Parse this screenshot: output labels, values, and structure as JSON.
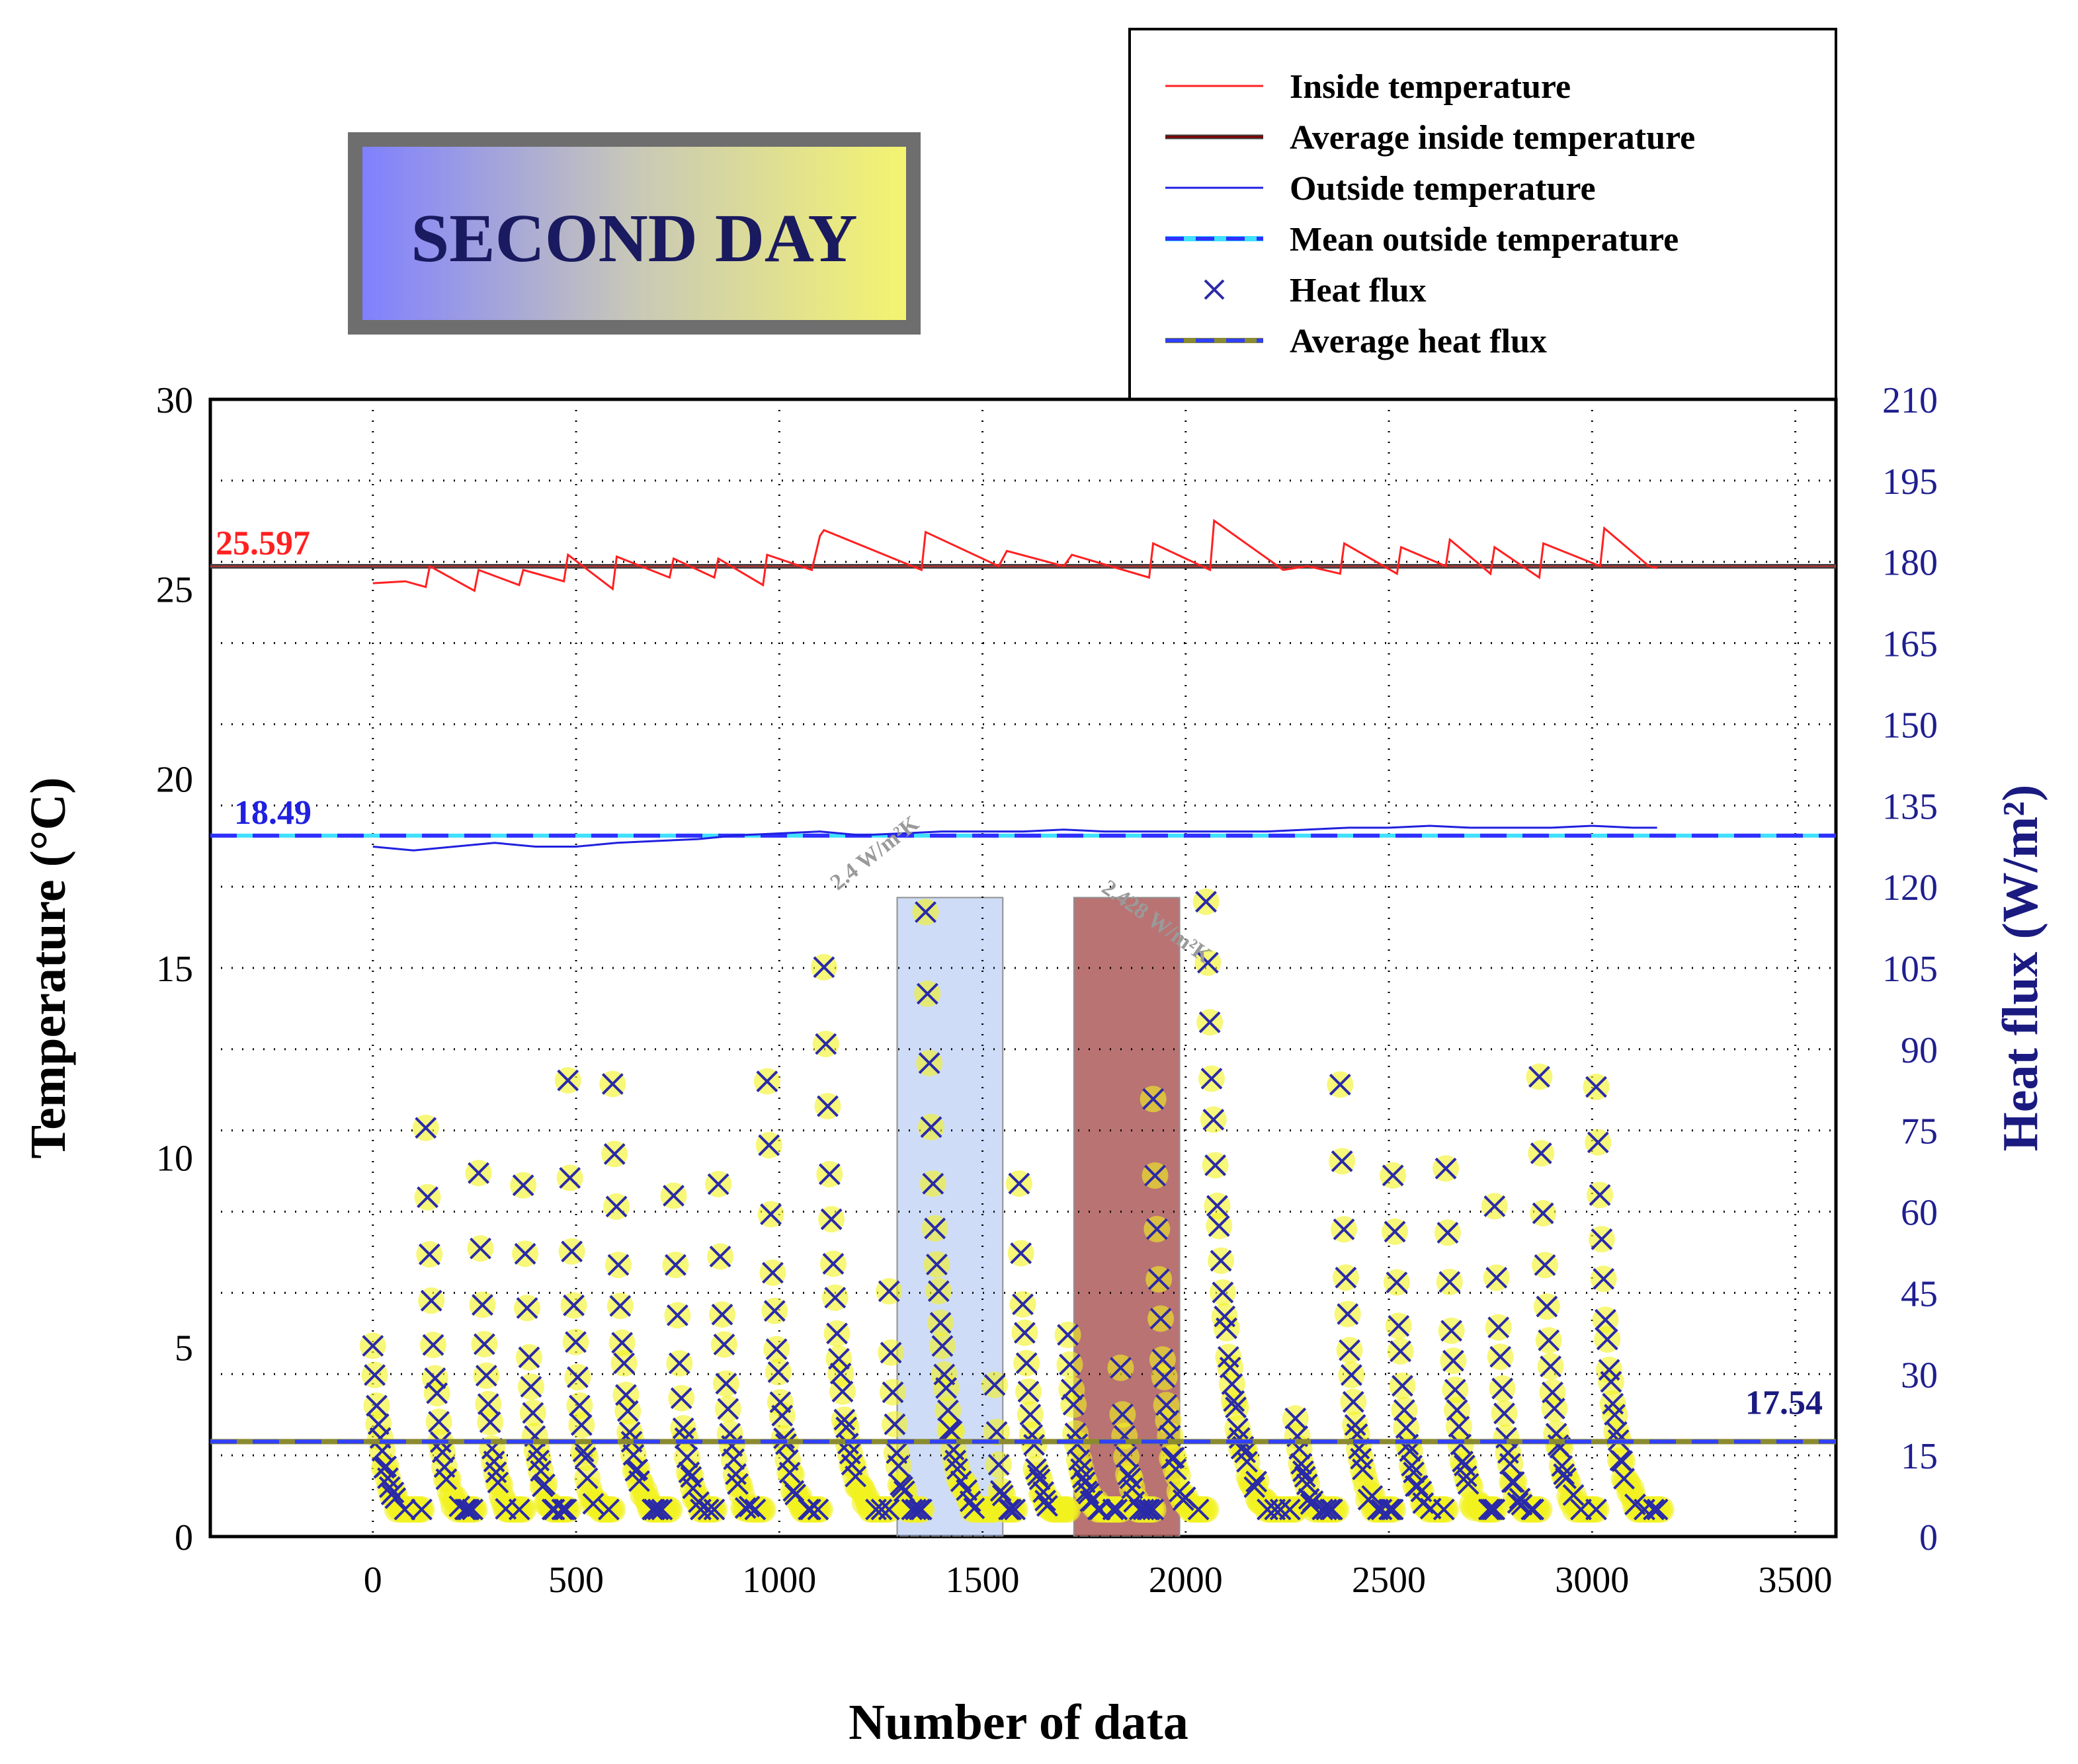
{
  "title_box": {
    "text": "SECOND DAY"
  },
  "chart_data": {
    "type": "line+scatter",
    "xlabel": "Number of data",
    "ylabel_left": "Temperature (°C)",
    "ylabel_right": "Heat flux (W/m²)",
    "xlim": [
      -400,
      3600
    ],
    "ylim_left": [
      0,
      30
    ],
    "ylim_right": [
      0,
      210
    ],
    "x_ticks": [
      "0",
      "500",
      "1000",
      "1500",
      "2000",
      "2500",
      "3000",
      "3500"
    ],
    "y_ticks_left": [
      "0",
      "5",
      "10",
      "15",
      "20",
      "25",
      "30"
    ],
    "y_ticks_right": [
      "0",
      "15",
      "30",
      "45",
      "60",
      "75",
      "90",
      "105",
      "120",
      "135",
      "150",
      "165",
      "180",
      "195",
      "210"
    ],
    "grid": true,
    "legend": {
      "position": "top-right",
      "entries": [
        {
          "label": "Inside temperature",
          "style": "line",
          "color": "#ff2020"
        },
        {
          "label": "Average inside temperature",
          "style": "line",
          "color": "#800000",
          "accent": "#404040"
        },
        {
          "label": "Outside temperature",
          "style": "line",
          "color": "#2020e0"
        },
        {
          "label": "Mean outside temperature",
          "style": "dashed",
          "color": "#3030ff",
          "accent": "#40e0ff"
        },
        {
          "label": "Heat flux",
          "style": "marker-x",
          "color": "#2a2aa8"
        },
        {
          "label": "Average heat flux",
          "style": "dashed",
          "color": "#3040ff",
          "accent": "#8a8a30"
        }
      ]
    },
    "inside_temperature": {
      "x": [
        0,
        80,
        130,
        140,
        250,
        260,
        360,
        370,
        470,
        480,
        590,
        600,
        730,
        740,
        840,
        850,
        960,
        970,
        1080,
        1100,
        1110,
        1350,
        1360,
        1540,
        1560,
        1700,
        1720,
        1910,
        1920,
        2040,
        2060,
        2070,
        2240,
        2300,
        2380,
        2390,
        2520,
        2530,
        2640,
        2650,
        2750,
        2760,
        2870,
        2880,
        3020,
        3030,
        3140,
        3160
      ],
      "y": [
        25.15,
        25.2,
        25.05,
        25.6,
        24.95,
        25.5,
        25.1,
        25.5,
        25.2,
        25.9,
        25.0,
        25.85,
        25.3,
        25.8,
        25.3,
        25.8,
        25.1,
        25.9,
        25.5,
        26.4,
        26.55,
        25.5,
        26.5,
        25.6,
        26.0,
        25.6,
        25.9,
        25.3,
        26.2,
        25.6,
        25.5,
        26.8,
        25.5,
        25.6,
        25.4,
        26.2,
        25.4,
        26.1,
        25.6,
        26.3,
        25.4,
        26.1,
        25.3,
        26.2,
        25.6,
        26.6,
        25.6,
        25.55
      ]
    },
    "average_inside_temperature": 25.597,
    "outside_temperature": {
      "x": [
        0,
        100,
        200,
        300,
        400,
        500,
        600,
        700,
        800,
        900,
        1000,
        1100,
        1200,
        1300,
        1400,
        1500,
        1600,
        1700,
        1800,
        1900,
        2000,
        2100,
        2200,
        2300,
        2400,
        2500,
        2600,
        2700,
        2800,
        2900,
        3000,
        3100,
        3160
      ],
      "y": [
        18.2,
        18.1,
        18.2,
        18.3,
        18.2,
        18.2,
        18.3,
        18.35,
        18.4,
        18.5,
        18.55,
        18.6,
        18.5,
        18.55,
        18.6,
        18.6,
        18.6,
        18.65,
        18.6,
        18.6,
        18.6,
        18.6,
        18.6,
        18.65,
        18.7,
        18.7,
        18.75,
        18.7,
        18.7,
        18.7,
        18.75,
        18.7,
        18.7
      ]
    },
    "mean_outside_temperature": 18.49,
    "average_heat_flux": 17.54,
    "heat_flux_peaks": [
      {
        "start": 0,
        "end": 120,
        "peak": 28
      },
      {
        "start": 130,
        "end": 250,
        "peak": 69
      },
      {
        "start": 260,
        "end": 370,
        "peak": 60
      },
      {
        "start": 370,
        "end": 480,
        "peak": 57
      },
      {
        "start": 480,
        "end": 590,
        "peak": 76
      },
      {
        "start": 590,
        "end": 730,
        "peak": 77
      },
      {
        "start": 740,
        "end": 840,
        "peak": 56
      },
      {
        "start": 850,
        "end": 960,
        "peak": 57
      },
      {
        "start": 970,
        "end": 1100,
        "peak": 78
      },
      {
        "start": 1110,
        "end": 1270,
        "peak": 98
      },
      {
        "start": 1270,
        "end": 1350,
        "peak": 37
      },
      {
        "start": 1360,
        "end": 1530,
        "peak": 108
      },
      {
        "start": 1530,
        "end": 1580,
        "peak": 22
      },
      {
        "start": 1590,
        "end": 1710,
        "peak": 57
      },
      {
        "start": 1710,
        "end": 1840,
        "peak": 30
      },
      {
        "start": 1840,
        "end": 1920,
        "peak": 23
      },
      {
        "start": 1920,
        "end": 2050,
        "peak": 74
      },
      {
        "start": 2050,
        "end": 2270,
        "peak": 111
      },
      {
        "start": 2270,
        "end": 2370,
        "peak": 15
      },
      {
        "start": 2380,
        "end": 2510,
        "peak": 75
      },
      {
        "start": 2510,
        "end": 2640,
        "peak": 60
      },
      {
        "start": 2640,
        "end": 2760,
        "peak": 60
      },
      {
        "start": 2760,
        "end": 2870,
        "peak": 53
      },
      {
        "start": 2870,
        "end": 3010,
        "peak": 77
      },
      {
        "start": 3010,
        "end": 3170,
        "peak": 76
      }
    ],
    "annotations": [
      {
        "text": "25.597",
        "color": "#ff2020"
      },
      {
        "text": "18.49",
        "color": "#2020e0"
      },
      {
        "text": "17.54",
        "color": "#1a1a80"
      }
    ],
    "highlight_bands": [
      {
        "x0": 1290,
        "x1": 1550,
        "color": "#a8bff0",
        "label": "2.4 W/m²K"
      },
      {
        "x0": 1725,
        "x1": 1985,
        "color": "#a85050",
        "label": "2.428 W/m²K"
      }
    ]
  }
}
